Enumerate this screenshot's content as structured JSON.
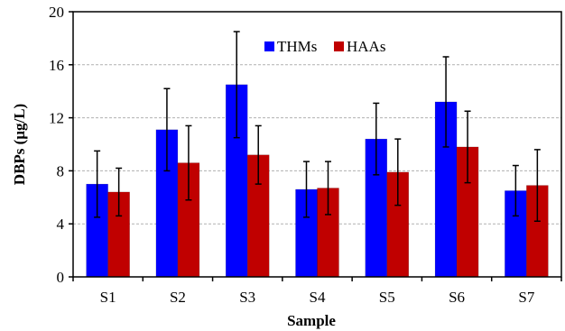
{
  "chart_data": {
    "type": "bar",
    "xlabel": "Sample",
    "ylabel": "DBPs (μg/L)",
    "ylim": [
      0,
      20
    ],
    "yticks": [
      0,
      4,
      8,
      12,
      16,
      20
    ],
    "grid": true,
    "legend_position": "top-center",
    "categories": [
      "S1",
      "S2",
      "S3",
      "S4",
      "S5",
      "S6",
      "S7"
    ],
    "series": [
      {
        "name": "THMs",
        "color": "#0000FF",
        "values": [
          7.0,
          11.1,
          14.5,
          6.6,
          10.4,
          13.2,
          6.5
        ],
        "error": [
          2.5,
          3.1,
          4.0,
          2.1,
          2.7,
          3.4,
          1.9
        ]
      },
      {
        "name": "HAAs",
        "color": "#C00000",
        "values": [
          6.4,
          8.6,
          9.2,
          6.7,
          7.9,
          9.8,
          6.9
        ],
        "error": [
          1.8,
          2.8,
          2.2,
          2.0,
          2.5,
          2.7,
          2.7
        ]
      }
    ]
  }
}
